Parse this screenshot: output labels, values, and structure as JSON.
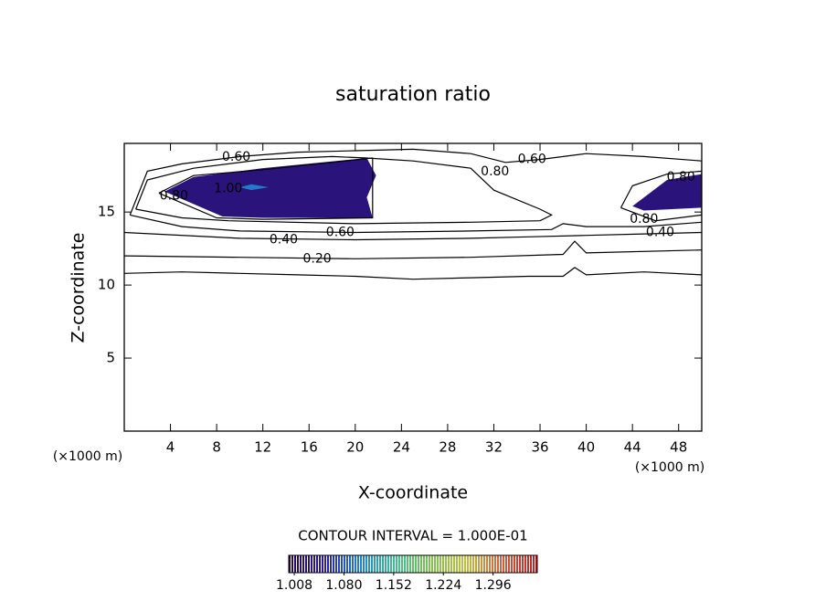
{
  "chart_data": {
    "type": "contour",
    "title": "saturation ratio",
    "xlabel": "X-coordinate",
    "ylabel": "Z-coordinate",
    "x_unit": "(×1000 m)",
    "footer": "CONTOUR INTERVAL = 1.000E-01",
    "xlim": [
      0,
      50
    ],
    "ylim": [
      0,
      19.7
    ],
    "xticks": [
      4,
      8,
      12,
      16,
      20,
      24,
      28,
      32,
      36,
      40,
      44,
      48
    ],
    "yticks": [
      5,
      10,
      15
    ],
    "filled_regions": [
      {
        "value": 1.03,
        "x": [
          3.5,
          8.5,
          12,
          21.5,
          21,
          21.8,
          21,
          12,
          6,
          3.5
        ],
        "y": [
          16.4,
          14.7,
          14.6,
          14.6,
          16,
          17.5,
          18.7,
          18.0,
          17.4,
          16.4
        ]
      },
      {
        "value": 1.1,
        "x": [
          10,
          11,
          12.5,
          11,
          10
        ],
        "y": [
          16.7,
          16.9,
          16.7,
          16.5,
          16.7
        ]
      },
      {
        "value": 1.03,
        "x": [
          44,
          45,
          50,
          50,
          47,
          44
        ],
        "y": [
          15.4,
          15.1,
          15.3,
          17.6,
          17.2,
          15.4
        ]
      }
    ],
    "contours": [
      {
        "x": [
          0,
          5,
          10,
          15,
          20,
          25,
          30,
          35,
          38,
          39,
          40,
          45,
          50
        ],
        "y": [
          10.8,
          10.9,
          10.8,
          10.7,
          10.6,
          10.4,
          10.5,
          10.6,
          10.6,
          11.2,
          10.7,
          10.9,
          10.7
        ]
      },
      {
        "x": [
          0,
          10,
          20,
          30,
          38,
          39,
          40,
          50
        ],
        "y": [
          12.0,
          11.9,
          11.8,
          11.9,
          12.1,
          13.0,
          12.2,
          12.4
        ]
      },
      {
        "x": [
          0,
          10,
          20,
          30,
          35,
          40,
          45,
          50
        ],
        "y": [
          13.6,
          13.2,
          13.1,
          13.2,
          13.3,
          13.4,
          13.5,
          13.6
        ]
      },
      {
        "x": [
          0.5,
          5,
          10,
          20,
          30,
          37,
          38,
          40,
          45,
          50,
          50,
          45,
          40,
          36,
          33,
          30,
          25,
          20,
          15,
          10,
          5,
          2,
          0.5
        ],
        "y": [
          14.8,
          14.0,
          13.7,
          13.6,
          13.7,
          13.8,
          14.2,
          14.0,
          14.0,
          14.3,
          18.5,
          18.8,
          19.0,
          18.6,
          18.4,
          19.0,
          19.3,
          19.2,
          19.1,
          18.8,
          18.3,
          17.8,
          14.8
        ]
      },
      {
        "x": [
          1,
          5,
          9,
          20,
          30,
          36,
          37,
          36,
          32,
          30,
          25,
          21,
          18,
          12,
          6,
          2,
          1
        ],
        "y": [
          15.2,
          14.6,
          14.4,
          14.2,
          14.3,
          14.4,
          14.8,
          15.2,
          16.5,
          18.0,
          18.5,
          18.7,
          18.8,
          18.6,
          18.0,
          17.2,
          15.2
        ]
      },
      {
        "x": [
          43,
          46,
          50,
          50,
          47,
          44,
          43
        ],
        "y": [
          15.3,
          14.4,
          14.8,
          17.8,
          17.6,
          16.8,
          15.3
        ]
      },
      {
        "x": [
          3,
          8,
          12,
          21.5,
          21.5,
          12,
          6,
          3
        ],
        "y": [
          16.3,
          14.6,
          14.5,
          14.6,
          18.7,
          17.9,
          17.5,
          16.3
        ]
      }
    ],
    "contour_labels": [
      {
        "value": 0.6,
        "label": "0.60",
        "x": 9.7,
        "y": 18.75
      },
      {
        "value": 0.6,
        "label": "0.60",
        "x": 35.3,
        "y": 18.6
      },
      {
        "value": 0.8,
        "label": "0.80",
        "x": 32.1,
        "y": 17.75
      },
      {
        "value": 0.8,
        "label": "0.80",
        "x": 4.3,
        "y": 16.1
      },
      {
        "value": 1.0,
        "label": "1.00",
        "x": 9.0,
        "y": 16.6
      },
      {
        "value": 0.6,
        "label": "0.60",
        "x": 18.7,
        "y": 13.6
      },
      {
        "value": 0.4,
        "label": "0.40",
        "x": 13.8,
        "y": 13.1
      },
      {
        "value": 0.2,
        "label": "0.20",
        "x": 16.7,
        "y": 11.8
      },
      {
        "value": 0.8,
        "label": "0.80",
        "x": 48.2,
        "y": 17.4
      },
      {
        "value": 0.8,
        "label": "0.80",
        "x": 45.0,
        "y": 14.5
      },
      {
        "value": 0.4,
        "label": "0.40",
        "x": 46.4,
        "y": 13.6
      }
    ],
    "colorbar_lim": [
      1.0,
      1.36
    ],
    "colorbar_ticks": [
      1.008,
      {
        "value": 1.08,
        "label": "1.080"
      },
      1.152,
      1.224,
      1.296
    ],
    "colormap": [
      "#2a0848",
      "#2a1aa0",
      "#2080d0",
      "#40c090",
      "#80c050",
      "#c0c040",
      "#d06040",
      "#c02020"
    ]
  }
}
